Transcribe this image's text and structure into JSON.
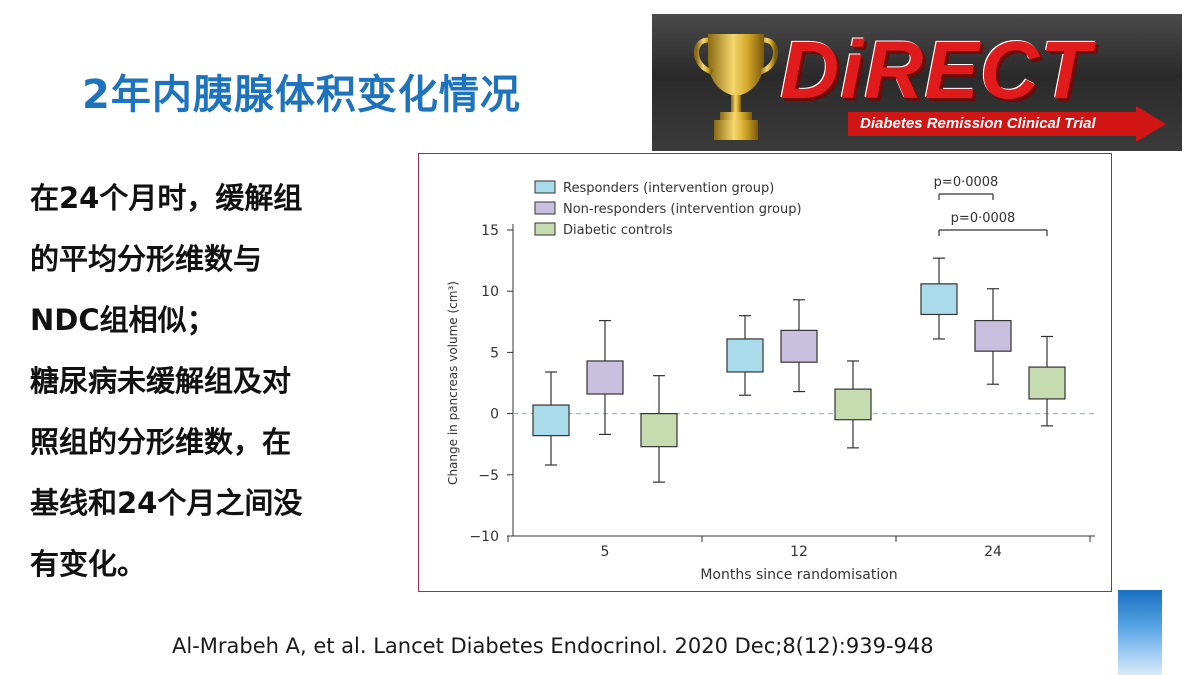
{
  "slide": {
    "title": "2年内胰腺体积变化情况",
    "body_lines": [
      "在24个月时，缓解组",
      "的平均分形维数与",
      "NDC组相似；",
      "糖尿病未缓解组及对",
      "照组的分形维数，在",
      "基线和24个月之间没",
      "有变化。"
    ],
    "citation": "Al-Mrabeh A, et al. Lancet Diabetes Endocrinol. 2020 Dec;8(12):939-948"
  },
  "logo": {
    "wordmark": "DiRECT",
    "subtitle": "Diabetes Remission Clinical Trial",
    "icon": "trophy-icon"
  },
  "chart_data": {
    "type": "box",
    "xlabel": "Months since randomisation",
    "ylabel": "Change in pancreas volume (cm³)",
    "ylim": [
      -10,
      15
    ],
    "yticks": [
      -10,
      -5,
      0,
      5,
      10,
      15
    ],
    "categories": [
      "5",
      "12",
      "24"
    ],
    "reference_line": 0,
    "series": [
      {
        "name": "Responders (intervention group)",
        "color": "#a9dbea",
        "boxes": [
          {
            "min": -4.2,
            "q1": -1.8,
            "q3": 0.7,
            "max": 3.4
          },
          {
            "min": 1.5,
            "q1": 3.4,
            "q3": 6.1,
            "max": 8.0
          },
          {
            "min": 6.1,
            "q1": 8.1,
            "q3": 10.6,
            "max": 12.7
          }
        ]
      },
      {
        "name": "Non-responders (intervention group)",
        "color": "#c9bfdf",
        "boxes": [
          {
            "min": -1.7,
            "q1": 1.6,
            "q3": 4.3,
            "max": 7.6
          },
          {
            "min": 1.8,
            "q1": 4.2,
            "q3": 6.8,
            "max": 9.3
          },
          {
            "min": 2.4,
            "q1": 5.1,
            "q3": 7.6,
            "max": 10.2
          }
        ]
      },
      {
        "name": "Diabetic controls",
        "color": "#c6dcb0",
        "boxes": [
          {
            "min": -5.6,
            "q1": -2.7,
            "q3": 0.0,
            "max": 3.1
          },
          {
            "min": -2.8,
            "q1": -0.5,
            "q3": 2.0,
            "max": 4.3
          },
          {
            "min": -1.0,
            "q1": 1.2,
            "q3": 3.8,
            "max": 6.3
          }
        ]
      }
    ],
    "annotations": [
      {
        "text": "p=0·0008",
        "from_series": 0,
        "to_series": 1,
        "category": "24"
      },
      {
        "text": "p=0·0008",
        "from_series": 0,
        "to_series": 2,
        "category": "24"
      }
    ],
    "legend_position": "top-left"
  }
}
